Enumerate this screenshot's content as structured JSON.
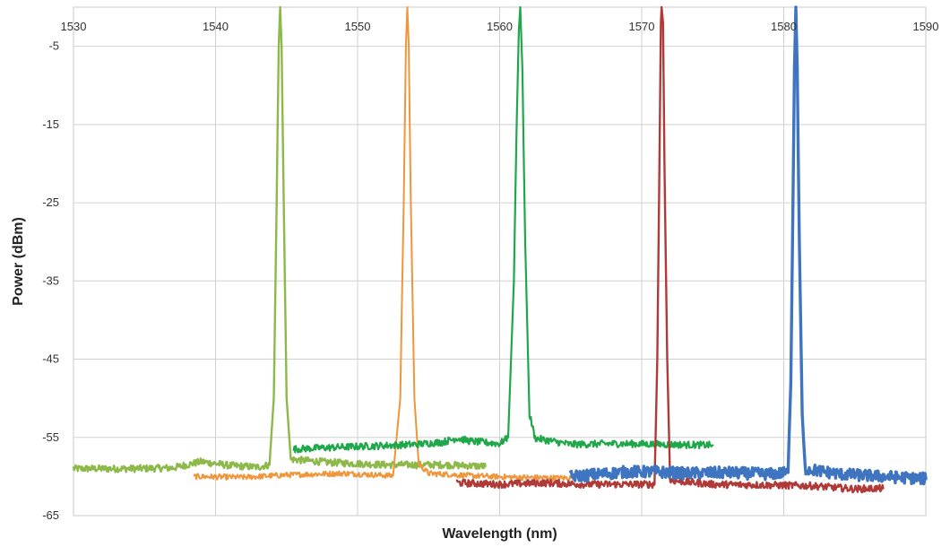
{
  "chart_data": {
    "type": "line",
    "title": "",
    "xlabel": "Wavelength (nm)",
    "ylabel": "Power (dBm)",
    "xlim": [
      1530,
      1590
    ],
    "ylim": [
      -65,
      0
    ],
    "x_ticks": [
      1530,
      1540,
      1550,
      1560,
      1570,
      1580,
      1590
    ],
    "y_ticks": [
      -5,
      -15,
      -25,
      -35,
      -45,
      -55,
      -65
    ],
    "grid": true,
    "legend": "none",
    "series": [
      {
        "color": "#8db84a",
        "noise": 0.45,
        "width": 2.4,
        "points": [
          [
            1530,
            -59.0
          ],
          [
            1534,
            -59.0
          ],
          [
            1537,
            -58.9
          ],
          [
            1539,
            -58.1
          ],
          [
            1541,
            -58.6
          ],
          [
            1543,
            -58.8
          ],
          [
            1543.8,
            -58.5
          ],
          [
            1544.1,
            -50
          ],
          [
            1544.3,
            -25
          ],
          [
            1544.45,
            -5
          ],
          [
            1544.55,
            0
          ],
          [
            1544.65,
            -5
          ],
          [
            1544.8,
            -25
          ],
          [
            1545.0,
            -50
          ],
          [
            1545.3,
            -57.8
          ],
          [
            1548,
            -58.2
          ],
          [
            1552,
            -58.5
          ],
          [
            1556,
            -58.5
          ],
          [
            1559,
            -58.7
          ]
        ]
      },
      {
        "color": "#f0953a",
        "noise": 0.35,
        "width": 2.0,
        "points": [
          [
            1538.5,
            -60.0
          ],
          [
            1542,
            -60.1
          ],
          [
            1545,
            -59.8
          ],
          [
            1549,
            -59.6
          ],
          [
            1552.5,
            -59.9
          ],
          [
            1553.0,
            -50
          ],
          [
            1553.25,
            -25
          ],
          [
            1553.4,
            -5
          ],
          [
            1553.5,
            0
          ],
          [
            1553.6,
            -5
          ],
          [
            1553.75,
            -25
          ],
          [
            1554.0,
            -50
          ],
          [
            1554.3,
            -58.4
          ],
          [
            1555,
            -59.6
          ],
          [
            1558,
            -59.9
          ],
          [
            1561,
            -60.1
          ],
          [
            1565,
            -60.2
          ]
        ]
      },
      {
        "color": "#1fa84a",
        "noise": 0.45,
        "width": 2.2,
        "points": [
          [
            1545.5,
            -56.5
          ],
          [
            1548,
            -56.3
          ],
          [
            1551,
            -56.1
          ],
          [
            1554,
            -55.9
          ],
          [
            1556,
            -55.6
          ],
          [
            1557,
            -55.1
          ],
          [
            1558,
            -55.5
          ],
          [
            1560,
            -55.8
          ],
          [
            1560.6,
            -55
          ],
          [
            1561.0,
            -35
          ],
          [
            1561.2,
            -15
          ],
          [
            1561.35,
            -3
          ],
          [
            1561.45,
            0
          ],
          [
            1561.6,
            -8
          ],
          [
            1561.8,
            -30
          ],
          [
            1562.1,
            -52
          ],
          [
            1562.5,
            -55.1
          ],
          [
            1565,
            -55.9
          ],
          [
            1568,
            -55.8
          ],
          [
            1572,
            -55.9
          ],
          [
            1575,
            -56.0
          ]
        ]
      },
      {
        "color": "#b03a38",
        "noise": 0.45,
        "width": 2.4,
        "points": [
          [
            1557,
            -60.8
          ],
          [
            1560,
            -61.0
          ],
          [
            1563,
            -60.8
          ],
          [
            1566,
            -61.0
          ],
          [
            1569,
            -61.0
          ],
          [
            1570.9,
            -61.0
          ],
          [
            1571.1,
            -45
          ],
          [
            1571.25,
            -20
          ],
          [
            1571.35,
            -2
          ],
          [
            1571.4,
            0
          ],
          [
            1571.5,
            -2
          ],
          [
            1571.6,
            -20
          ],
          [
            1571.8,
            -45
          ],
          [
            1572.0,
            -60.5
          ],
          [
            1575,
            -61.0
          ],
          [
            1579,
            -61.1
          ],
          [
            1582,
            -61.2
          ],
          [
            1585,
            -61.6
          ],
          [
            1587,
            -61.5
          ]
        ]
      },
      {
        "color": "#3f74c0",
        "noise": 0.75,
        "width": 3.4,
        "points": [
          [
            1565,
            -60.0
          ],
          [
            1567,
            -59.7
          ],
          [
            1569,
            -59.4
          ],
          [
            1571,
            -59.4
          ],
          [
            1573,
            -59.6
          ],
          [
            1576,
            -59.5
          ],
          [
            1579,
            -59.7
          ],
          [
            1580.3,
            -59.5
          ],
          [
            1580.5,
            -48
          ],
          [
            1580.65,
            -25
          ],
          [
            1580.75,
            -8
          ],
          [
            1580.85,
            0
          ],
          [
            1580.95,
            -8
          ],
          [
            1581.1,
            -30
          ],
          [
            1581.3,
            -52
          ],
          [
            1581.5,
            -59.0
          ],
          [
            1584,
            -59.7
          ],
          [
            1587,
            -60.0
          ],
          [
            1590,
            -60.3
          ]
        ]
      }
    ]
  }
}
